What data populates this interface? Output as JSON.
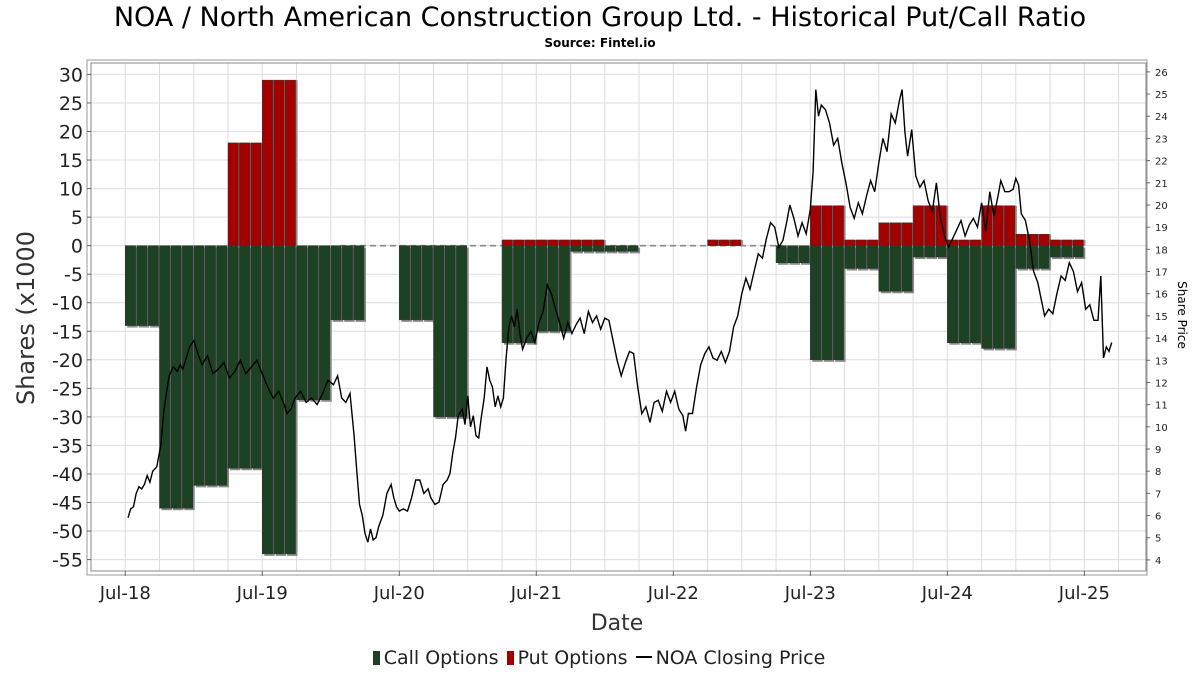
{
  "title": "NOA / North American Construction Group Ltd. - Historical Put/Call Ratio",
  "subtitle": "Source: Fintel.io",
  "legend": {
    "call": "Call Options",
    "put": "Put Options",
    "line": "NOA Closing Price"
  },
  "colors": {
    "call": "#1d4223",
    "put": "#a50000",
    "line": "#000000",
    "grid": "#dddddd"
  },
  "chart_data": {
    "type": "bar",
    "xlabel": "Date",
    "ylabel": "Shares (x1000",
    "y2label": "Share Price",
    "ylim": [
      -57,
      32
    ],
    "y2lim": [
      3.5,
      26.4
    ],
    "xlim": [
      2018.25,
      2025.95
    ],
    "x_ticks": [
      "Jul-18",
      "Jul-19",
      "Jul-20",
      "Jul-21",
      "Jul-22",
      "Jul-23",
      "Jul-24",
      "Jul-25"
    ],
    "y_ticks": [
      30,
      25,
      20,
      15,
      10,
      5,
      0,
      -5,
      -10,
      -15,
      -20,
      -25,
      -30,
      -35,
      -40,
      -45,
      -50,
      -55
    ],
    "y2_ticks": [
      26,
      25,
      24,
      23,
      22,
      21,
      20,
      19,
      18,
      17,
      16,
      15,
      14,
      13,
      12,
      11,
      10,
      9,
      8,
      7,
      6,
      5,
      4
    ],
    "grid": true,
    "legend_position": "bottom",
    "call_options": [
      {
        "start": 2018.5,
        "end": 2018.75,
        "value": -14
      },
      {
        "start": 2018.75,
        "end": 2019.0,
        "value": -46
      },
      {
        "start": 2019.0,
        "end": 2019.25,
        "value": -42
      },
      {
        "start": 2019.25,
        "end": 2019.5,
        "value": -39
      },
      {
        "start": 2019.5,
        "end": 2019.75,
        "value": -54
      },
      {
        "start": 2019.75,
        "end": 2020.0,
        "value": -27
      },
      {
        "start": 2020.0,
        "end": 2020.25,
        "value": -13
      },
      {
        "start": 2020.5,
        "end": 2020.75,
        "value": -13
      },
      {
        "start": 2020.75,
        "end": 2021.0,
        "value": -30
      },
      {
        "start": 2021.25,
        "end": 2021.5,
        "value": -17
      },
      {
        "start": 2021.5,
        "end": 2021.75,
        "value": -15
      },
      {
        "start": 2021.75,
        "end": 2022.0,
        "value": -1
      },
      {
        "start": 2022.0,
        "end": 2022.25,
        "value": -1
      },
      {
        "start": 2023.25,
        "end": 2023.5,
        "value": -3
      },
      {
        "start": 2023.5,
        "end": 2023.75,
        "value": -20
      },
      {
        "start": 2023.75,
        "end": 2024.0,
        "value": -4
      },
      {
        "start": 2024.0,
        "end": 2024.25,
        "value": -8
      },
      {
        "start": 2024.25,
        "end": 2024.5,
        "value": -2
      },
      {
        "start": 2024.5,
        "end": 2024.75,
        "value": -17
      },
      {
        "start": 2024.75,
        "end": 2025.0,
        "value": -18
      },
      {
        "start": 2025.0,
        "end": 2025.25,
        "value": -4
      },
      {
        "start": 2025.25,
        "end": 2025.5,
        "value": -2
      }
    ],
    "put_options": [
      {
        "start": 2019.25,
        "end": 2019.5,
        "value": 18
      },
      {
        "start": 2019.5,
        "end": 2019.75,
        "value": 29
      },
      {
        "start": 2021.25,
        "end": 2021.5,
        "value": 1
      },
      {
        "start": 2021.5,
        "end": 2021.75,
        "value": 1
      },
      {
        "start": 2021.75,
        "end": 2022.0,
        "value": 1
      },
      {
        "start": 2022.75,
        "end": 2023.0,
        "value": 1
      },
      {
        "start": 2023.5,
        "end": 2023.75,
        "value": 7
      },
      {
        "start": 2023.75,
        "end": 2024.0,
        "value": 1
      },
      {
        "start": 2024.0,
        "end": 2024.25,
        "value": 4
      },
      {
        "start": 2024.25,
        "end": 2024.5,
        "value": 7
      },
      {
        "start": 2024.5,
        "end": 2024.75,
        "value": 1
      },
      {
        "start": 2024.75,
        "end": 2025.0,
        "value": 7
      },
      {
        "start": 2025.0,
        "end": 2025.25,
        "value": 2
      },
      {
        "start": 2025.25,
        "end": 2025.5,
        "value": 1
      }
    ],
    "zero_gaps": [
      {
        "start": 2020.25,
        "end": 2020.5
      },
      {
        "start": 2021.0,
        "end": 2021.25
      },
      {
        "start": 2022.25,
        "end": 2022.75
      },
      {
        "start": 2023.0,
        "end": 2023.25
      }
    ],
    "price_series": {
      "name": "NOA Closing Price",
      "points": [
        [
          2018.52,
          5.9
        ],
        [
          2018.54,
          6.3
        ],
        [
          2018.56,
          6.4
        ],
        [
          2018.58,
          7.0
        ],
        [
          2018.6,
          7.3
        ],
        [
          2018.62,
          7.2
        ],
        [
          2018.64,
          7.4
        ],
        [
          2018.66,
          7.8
        ],
        [
          2018.68,
          7.5
        ],
        [
          2018.7,
          8.0
        ],
        [
          2018.73,
          8.2
        ],
        [
          2018.76,
          9.2
        ],
        [
          2018.78,
          10.6
        ],
        [
          2018.8,
          11.5
        ],
        [
          2018.82,
          12.3
        ],
        [
          2018.85,
          12.7
        ],
        [
          2018.88,
          12.5
        ],
        [
          2018.9,
          12.8
        ],
        [
          2018.92,
          12.6
        ],
        [
          2018.95,
          13.2
        ],
        [
          2018.97,
          13.6
        ],
        [
          2019.0,
          13.9
        ],
        [
          2019.03,
          13.3
        ],
        [
          2019.06,
          12.8
        ],
        [
          2019.1,
          13.2
        ],
        [
          2019.14,
          12.4
        ],
        [
          2019.18,
          12.6
        ],
        [
          2019.22,
          12.9
        ],
        [
          2019.26,
          12.2
        ],
        [
          2019.3,
          12.5
        ],
        [
          2019.34,
          13.0
        ],
        [
          2019.38,
          12.4
        ],
        [
          2019.42,
          12.7
        ],
        [
          2019.46,
          13.0
        ],
        [
          2019.5,
          12.4
        ],
        [
          2019.54,
          11.8
        ],
        [
          2019.58,
          11.3
        ],
        [
          2019.62,
          11.6
        ],
        [
          2019.66,
          11.0
        ],
        [
          2019.68,
          10.6
        ],
        [
          2019.71,
          10.8
        ],
        [
          2019.74,
          11.3
        ],
        [
          2019.78,
          11.6
        ],
        [
          2019.82,
          11.1
        ],
        [
          2019.86,
          11.3
        ],
        [
          2019.9,
          11.0
        ],
        [
          2019.94,
          11.5
        ],
        [
          2019.98,
          12.1
        ],
        [
          2020.02,
          11.9
        ],
        [
          2020.05,
          12.3
        ],
        [
          2020.08,
          11.3
        ],
        [
          2020.11,
          11.1
        ],
        [
          2020.14,
          11.5
        ],
        [
          2020.17,
          9.6
        ],
        [
          2020.19,
          8.0
        ],
        [
          2020.21,
          6.5
        ],
        [
          2020.23,
          6.0
        ],
        [
          2020.25,
          5.2
        ],
        [
          2020.27,
          4.8
        ],
        [
          2020.29,
          5.4
        ],
        [
          2020.31,
          4.9
        ],
        [
          2020.33,
          5.0
        ],
        [
          2020.35,
          5.5
        ],
        [
          2020.38,
          6.0
        ],
        [
          2020.41,
          7.0
        ],
        [
          2020.44,
          7.4
        ],
        [
          2020.46,
          6.8
        ],
        [
          2020.48,
          6.4
        ],
        [
          2020.5,
          6.2
        ],
        [
          2020.53,
          6.3
        ],
        [
          2020.56,
          6.2
        ],
        [
          2020.59,
          6.8
        ],
        [
          2020.62,
          7.6
        ],
        [
          2020.65,
          7.6
        ],
        [
          2020.68,
          7.0
        ],
        [
          2020.71,
          7.2
        ],
        [
          2020.73,
          6.8
        ],
        [
          2020.76,
          6.5
        ],
        [
          2020.79,
          6.6
        ],
        [
          2020.82,
          7.4
        ],
        [
          2020.85,
          7.6
        ],
        [
          2020.87,
          7.9
        ],
        [
          2020.89,
          8.8
        ],
        [
          2020.91,
          9.5
        ],
        [
          2020.93,
          10.5
        ],
        [
          2020.96,
          10.8
        ],
        [
          2020.98,
          10.1
        ],
        [
          2021.0,
          11.4
        ],
        [
          2021.02,
          10.0
        ],
        [
          2021.04,
          10.5
        ],
        [
          2021.06,
          9.6
        ],
        [
          2021.08,
          9.5
        ],
        [
          2021.1,
          10.5
        ],
        [
          2021.12,
          11.3
        ],
        [
          2021.14,
          12.7
        ],
        [
          2021.16,
          12.1
        ],
        [
          2021.18,
          11.8
        ],
        [
          2021.2,
          10.9
        ],
        [
          2021.22,
          11.4
        ],
        [
          2021.24,
          10.9
        ],
        [
          2021.26,
          11.3
        ],
        [
          2021.28,
          13.1
        ],
        [
          2021.3,
          14.5
        ],
        [
          2021.32,
          15.0
        ],
        [
          2021.34,
          14.5
        ],
        [
          2021.36,
          15.3
        ],
        [
          2021.38,
          14.2
        ],
        [
          2021.4,
          13.5
        ],
        [
          2021.43,
          14.0
        ],
        [
          2021.46,
          14.3
        ],
        [
          2021.49,
          13.8
        ],
        [
          2021.52,
          14.7
        ],
        [
          2021.55,
          15.2
        ],
        [
          2021.58,
          16.4
        ],
        [
          2021.61,
          16.0
        ],
        [
          2021.64,
          15.3
        ],
        [
          2021.67,
          14.7
        ],
        [
          2021.7,
          14.0
        ],
        [
          2021.73,
          14.7
        ],
        [
          2021.76,
          14.2
        ],
        [
          2021.79,
          14.6
        ],
        [
          2021.82,
          14.9
        ],
        [
          2021.85,
          14.2
        ],
        [
          2021.88,
          15.2
        ],
        [
          2021.91,
          14.7
        ],
        [
          2021.94,
          15.0
        ],
        [
          2021.97,
          14.4
        ],
        [
          2022.0,
          14.9
        ],
        [
          2022.03,
          14.8
        ],
        [
          2022.06,
          13.9
        ],
        [
          2022.09,
          13.0
        ],
        [
          2022.12,
          12.3
        ],
        [
          2022.15,
          12.9
        ],
        [
          2022.18,
          13.4
        ],
        [
          2022.21,
          13.3
        ],
        [
          2022.24,
          11.8
        ],
        [
          2022.27,
          10.6
        ],
        [
          2022.3,
          10.9
        ],
        [
          2022.33,
          10.2
        ],
        [
          2022.36,
          11.1
        ],
        [
          2022.39,
          11.2
        ],
        [
          2022.42,
          10.7
        ],
        [
          2022.45,
          11.6
        ],
        [
          2022.48,
          11.1
        ],
        [
          2022.51,
          11.6
        ],
        [
          2022.54,
          10.8
        ],
        [
          2022.57,
          10.5
        ],
        [
          2022.59,
          9.8
        ],
        [
          2022.61,
          10.6
        ],
        [
          2022.64,
          10.6
        ],
        [
          2022.67,
          11.8
        ],
        [
          2022.7,
          12.8
        ],
        [
          2022.73,
          13.3
        ],
        [
          2022.76,
          13.6
        ],
        [
          2022.79,
          13.1
        ],
        [
          2022.82,
          13.0
        ],
        [
          2022.85,
          13.4
        ],
        [
          2022.88,
          12.9
        ],
        [
          2022.91,
          13.4
        ],
        [
          2022.94,
          14.5
        ],
        [
          2022.97,
          15.0
        ],
        [
          2023.0,
          16.0
        ],
        [
          2023.03,
          16.7
        ],
        [
          2023.06,
          16.2
        ],
        [
          2023.09,
          17.0
        ],
        [
          2023.12,
          17.8
        ],
        [
          2023.15,
          17.6
        ],
        [
          2023.18,
          18.5
        ],
        [
          2023.21,
          19.2
        ],
        [
          2023.24,
          19.0
        ],
        [
          2023.27,
          18.1
        ],
        [
          2023.3,
          18.4
        ],
        [
          2023.33,
          19.3
        ],
        [
          2023.35,
          20.0
        ],
        [
          2023.38,
          19.4
        ],
        [
          2023.41,
          18.6
        ],
        [
          2023.44,
          19.2
        ],
        [
          2023.47,
          18.7
        ],
        [
          2023.5,
          19.8
        ],
        [
          2023.52,
          21.5
        ],
        [
          2023.54,
          25.2
        ],
        [
          2023.56,
          24.0
        ],
        [
          2023.58,
          24.5
        ],
        [
          2023.61,
          24.3
        ],
        [
          2023.64,
          23.7
        ],
        [
          2023.67,
          22.7
        ],
        [
          2023.7,
          23.0
        ],
        [
          2023.73,
          21.9
        ],
        [
          2023.76,
          21.0
        ],
        [
          2023.79,
          19.9
        ],
        [
          2023.82,
          19.4
        ],
        [
          2023.85,
          20.1
        ],
        [
          2023.88,
          19.6
        ],
        [
          2023.91,
          20.4
        ],
        [
          2023.94,
          21.1
        ],
        [
          2023.97,
          20.6
        ],
        [
          2024.0,
          21.9
        ],
        [
          2024.03,
          23.0
        ],
        [
          2024.06,
          22.4
        ],
        [
          2024.09,
          24.1
        ],
        [
          2024.12,
          23.7
        ],
        [
          2024.15,
          24.7
        ],
        [
          2024.17,
          25.2
        ],
        [
          2024.19,
          23.3
        ],
        [
          2024.21,
          22.2
        ],
        [
          2024.24,
          23.4
        ],
        [
          2024.27,
          21.3
        ],
        [
          2024.3,
          20.8
        ],
        [
          2024.33,
          21.1
        ],
        [
          2024.36,
          20.2
        ],
        [
          2024.39,
          19.7
        ],
        [
          2024.42,
          21.0
        ],
        [
          2024.45,
          19.4
        ],
        [
          2024.48,
          18.6
        ],
        [
          2024.51,
          18.1
        ],
        [
          2024.54,
          18.5
        ],
        [
          2024.57,
          18.9
        ],
        [
          2024.6,
          19.3
        ],
        [
          2024.63,
          18.6
        ],
        [
          2024.66,
          19.1
        ],
        [
          2024.69,
          19.4
        ],
        [
          2024.72,
          19.0
        ],
        [
          2024.75,
          20.1
        ],
        [
          2024.78,
          18.8
        ],
        [
          2024.81,
          20.6
        ],
        [
          2024.84,
          19.5
        ],
        [
          2024.87,
          20.4
        ],
        [
          2024.89,
          21.1
        ],
        [
          2024.92,
          20.6
        ],
        [
          2024.95,
          20.6
        ],
        [
          2024.98,
          20.7
        ],
        [
          2025.0,
          21.2
        ],
        [
          2025.02,
          20.9
        ],
        [
          2025.04,
          19.6
        ],
        [
          2025.07,
          19.3
        ],
        [
          2025.1,
          18.4
        ],
        [
          2025.13,
          17.0
        ],
        [
          2025.16,
          16.5
        ],
        [
          2025.19,
          15.6
        ],
        [
          2025.21,
          15.0
        ],
        [
          2025.24,
          15.3
        ],
        [
          2025.27,
          15.1
        ],
        [
          2025.3,
          16.0
        ],
        [
          2025.33,
          16.8
        ],
        [
          2025.36,
          16.6
        ],
        [
          2025.39,
          17.4
        ],
        [
          2025.42,
          17.0
        ],
        [
          2025.45,
          16.1
        ],
        [
          2025.48,
          16.5
        ],
        [
          2025.51,
          15.3
        ],
        [
          2025.54,
          15.5
        ],
        [
          2025.57,
          14.8
        ],
        [
          2025.6,
          14.8
        ],
        [
          2025.62,
          16.8
        ],
        [
          2025.64,
          13.1
        ],
        [
          2025.66,
          13.6
        ],
        [
          2025.68,
          13.4
        ],
        [
          2025.7,
          13.8
        ]
      ]
    }
  }
}
